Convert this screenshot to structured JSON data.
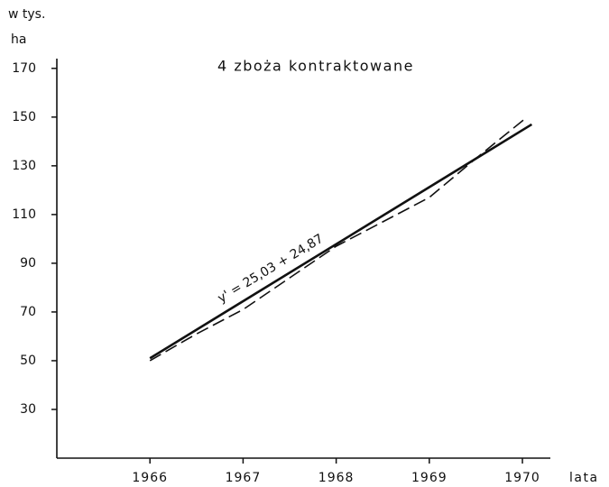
{
  "chart_data": {
    "type": "line",
    "title": "4 zboża kontraktowane",
    "y_label_lines": [
      "w tys.",
      "ha"
    ],
    "x_label": "lata",
    "annotation": "y' = 25,03 + 24,87",
    "xlim": [
      1965,
      1970.3
    ],
    "xticks": [
      1966,
      1967,
      1968,
      1969,
      1970
    ],
    "ylim": [
      10,
      174
    ],
    "yticks": [
      30,
      50,
      70,
      90,
      110,
      130,
      150,
      170
    ],
    "grid": false,
    "series": [
      {
        "color": "#111111",
        "dashed": false,
        "x": [
          1966,
          1970.1
        ],
        "values": [
          51,
          147
        ]
      },
      {
        "color": "#111111",
        "dashed": true,
        "x": [
          1966,
          1966.5,
          1967,
          1967.5,
          1968,
          1968.5,
          1969,
          1969.5,
          1970.05
        ],
        "values": [
          50,
          61,
          71,
          84,
          97,
          107,
          117,
          133,
          150
        ]
      }
    ]
  }
}
